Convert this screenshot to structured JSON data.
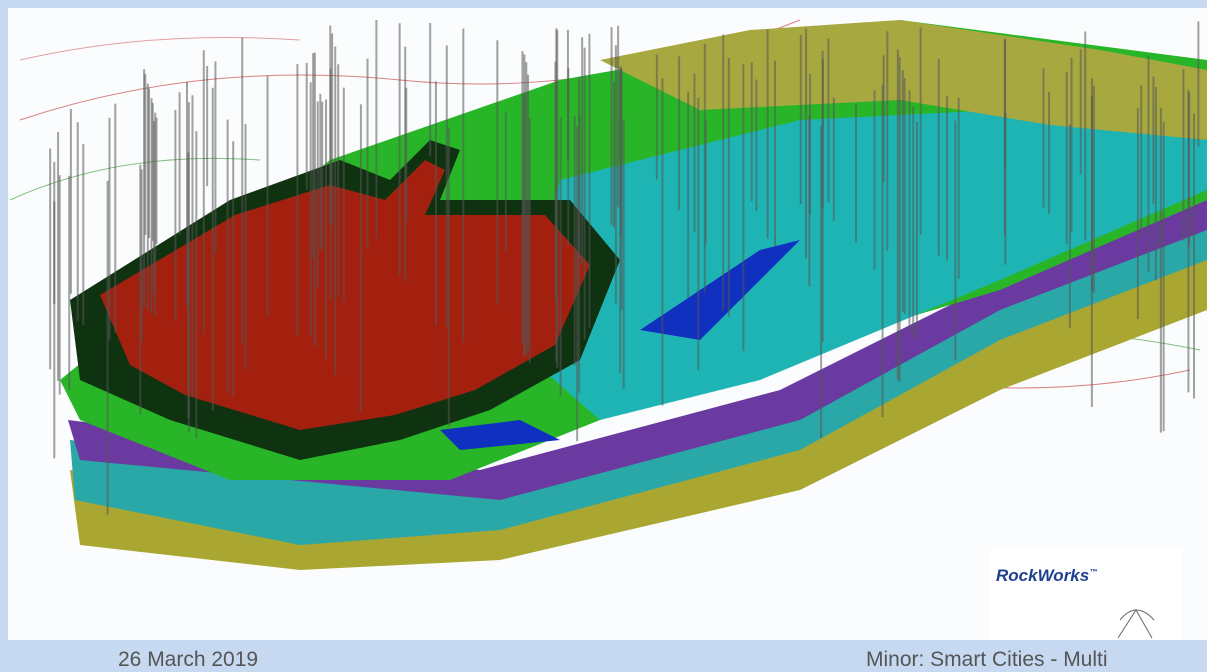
{
  "slide": {
    "logo": {
      "name": "RockWorks",
      "mark": "™"
    },
    "footer": {
      "date": "26 March 2019",
      "title": "Minor: Smart Cities - Multi"
    }
  }
}
